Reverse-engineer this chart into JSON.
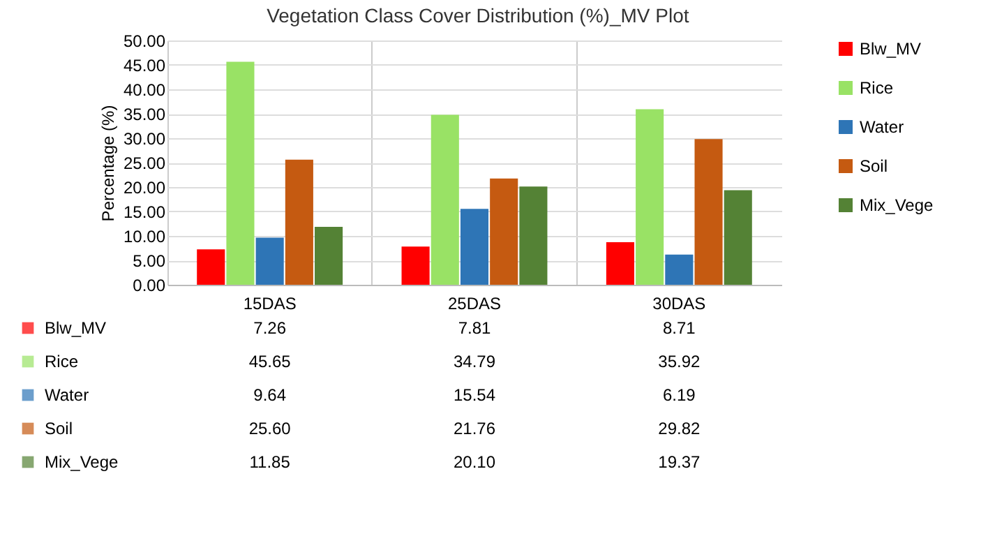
{
  "chart_data": {
    "type": "bar",
    "title": "Vegetation Class Cover Distribution (%)_MV Plot",
    "ylabel": "Percentage (%)",
    "categories": [
      "15DAS",
      "25DAS",
      "30DAS"
    ],
    "series": [
      {
        "name": "Blw_MV",
        "color": "#ff0000",
        "values": [
          7.26,
          7.81,
          8.71
        ],
        "value_labels": [
          "7.26",
          "7.81",
          "8.71"
        ]
      },
      {
        "name": "Rice",
        "color": "#99e265",
        "values": [
          45.65,
          34.79,
          35.92
        ],
        "value_labels": [
          "45.65",
          "34.79",
          "35.92"
        ]
      },
      {
        "name": "Water",
        "color": "#2e75b6",
        "values": [
          9.64,
          15.54,
          6.19
        ],
        "value_labels": [
          "9.64",
          "15.54",
          "6.19"
        ]
      },
      {
        "name": "Soil",
        "color": "#c55a11",
        "values": [
          25.6,
          21.76,
          29.82
        ],
        "value_labels": [
          "25.60",
          "21.76",
          "29.82"
        ]
      },
      {
        "name": "Mix_Vege",
        "color": "#548235",
        "values": [
          11.85,
          20.1,
          19.37
        ],
        "value_labels": [
          "11.85",
          "20.10",
          "19.37"
        ]
      }
    ],
    "ylim": [
      0,
      50
    ],
    "yticks": [
      {
        "value": 0,
        "label": "0.00"
      },
      {
        "value": 5,
        "label": "5.00"
      },
      {
        "value": 10,
        "label": "10.00"
      },
      {
        "value": 15,
        "label": "15.00"
      },
      {
        "value": 20,
        "label": "20.00"
      },
      {
        "value": 25,
        "label": "25.00"
      },
      {
        "value": 30,
        "label": "30.00"
      },
      {
        "value": 35,
        "label": "35.00"
      },
      {
        "value": 40,
        "label": "40.00"
      },
      {
        "value": 45,
        "label": "45.00"
      },
      {
        "value": 50,
        "label": "50.00"
      }
    ],
    "grid": "y",
    "legend": "right"
  }
}
